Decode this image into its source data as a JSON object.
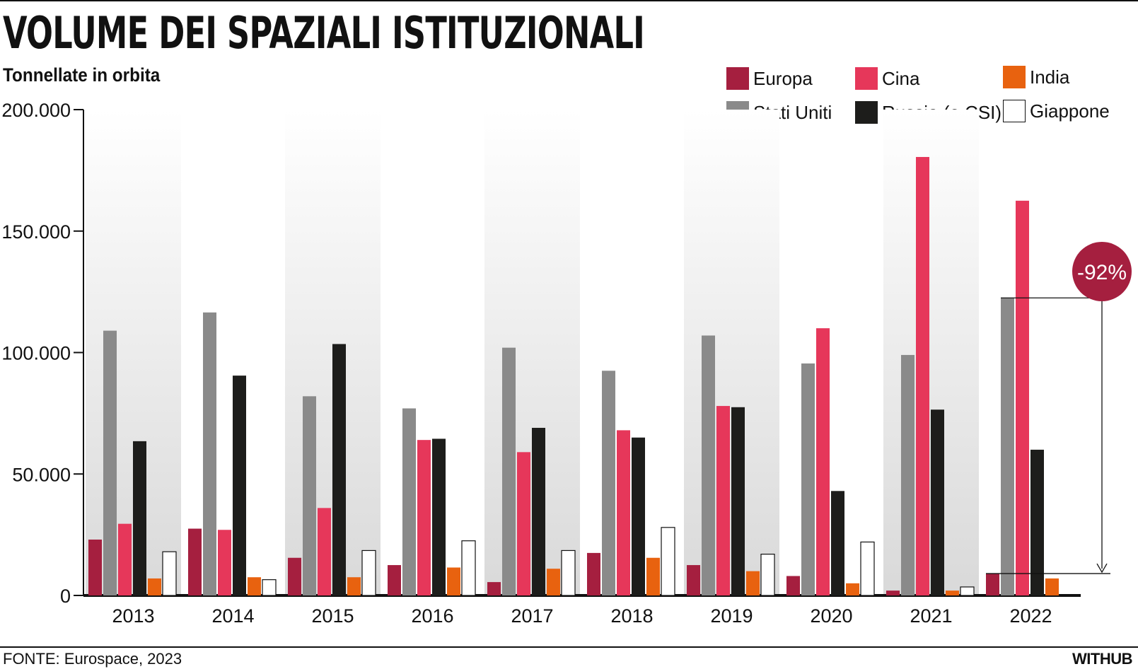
{
  "chart_data": {
    "type": "bar",
    "title": "VOLUME DEI SPAZIALI ISTITUZIONALI",
    "subtitle": "Tonnellate in orbita",
    "categories": [
      "2013",
      "2014",
      "2015",
      "2016",
      "2017",
      "2018",
      "2019",
      "2020",
      "2021",
      "2022"
    ],
    "ylim": [
      0,
      200000
    ],
    "yticks": [
      {
        "value": 0,
        "label": "0"
      },
      {
        "value": 50000,
        "label": "50.000"
      },
      {
        "value": 100000,
        "label": "100.000"
      },
      {
        "value": 150000,
        "label": "150.000"
      },
      {
        "value": 200000,
        "label": "200.000"
      }
    ],
    "series": [
      {
        "name": "Europa",
        "color": "#a51f3f",
        "values": [
          23000,
          27500,
          15500,
          12500,
          5500,
          17500,
          12500,
          8000,
          2000,
          9000
        ]
      },
      {
        "name": "Stati Uniti",
        "color": "#8a8a8a",
        "values": [
          109000,
          116500,
          82000,
          77000,
          102000,
          92500,
          107000,
          95500,
          99000,
          122500
        ]
      },
      {
        "name": "Cina",
        "color": "#e6375a",
        "values": [
          29500,
          27000,
          36000,
          64000,
          59000,
          68000,
          78000,
          110000,
          180500,
          162500
        ]
      },
      {
        "name": "Russia (e CSI)",
        "color": "#1d1d1b",
        "values": [
          63500,
          90500,
          103500,
          64500,
          69000,
          65000,
          77500,
          43000,
          76500,
          60000
        ]
      },
      {
        "name": "India",
        "color": "#e8620f",
        "values": [
          7000,
          7500,
          7500,
          11500,
          11000,
          15500,
          10000,
          5000,
          2000,
          7000
        ]
      },
      {
        "name": "Giappone",
        "color": "#ffffff",
        "values": [
          18000,
          6500,
          18500,
          22500,
          18500,
          28000,
          17000,
          22000,
          3500,
          0
        ]
      }
    ],
    "legend_position": "top-right",
    "grid": false,
    "annotation": {
      "text": "-92%",
      "color": "#a51f3f"
    }
  },
  "legend": [
    {
      "label": "Europa",
      "color": "#a51f3f"
    },
    {
      "label": "Cina",
      "color": "#e6375a"
    },
    {
      "label": "India",
      "color": "#e8620f"
    },
    {
      "label": "Stati Uniti",
      "color": "#8a8a8a"
    },
    {
      "label": "Russia (e CSI)",
      "color": "#1d1d1b"
    },
    {
      "label": "Giappone",
      "color": "#ffffff"
    }
  ],
  "footer": {
    "source": "FONTE: Eurospace, 2023",
    "brand": "WITHUB"
  }
}
